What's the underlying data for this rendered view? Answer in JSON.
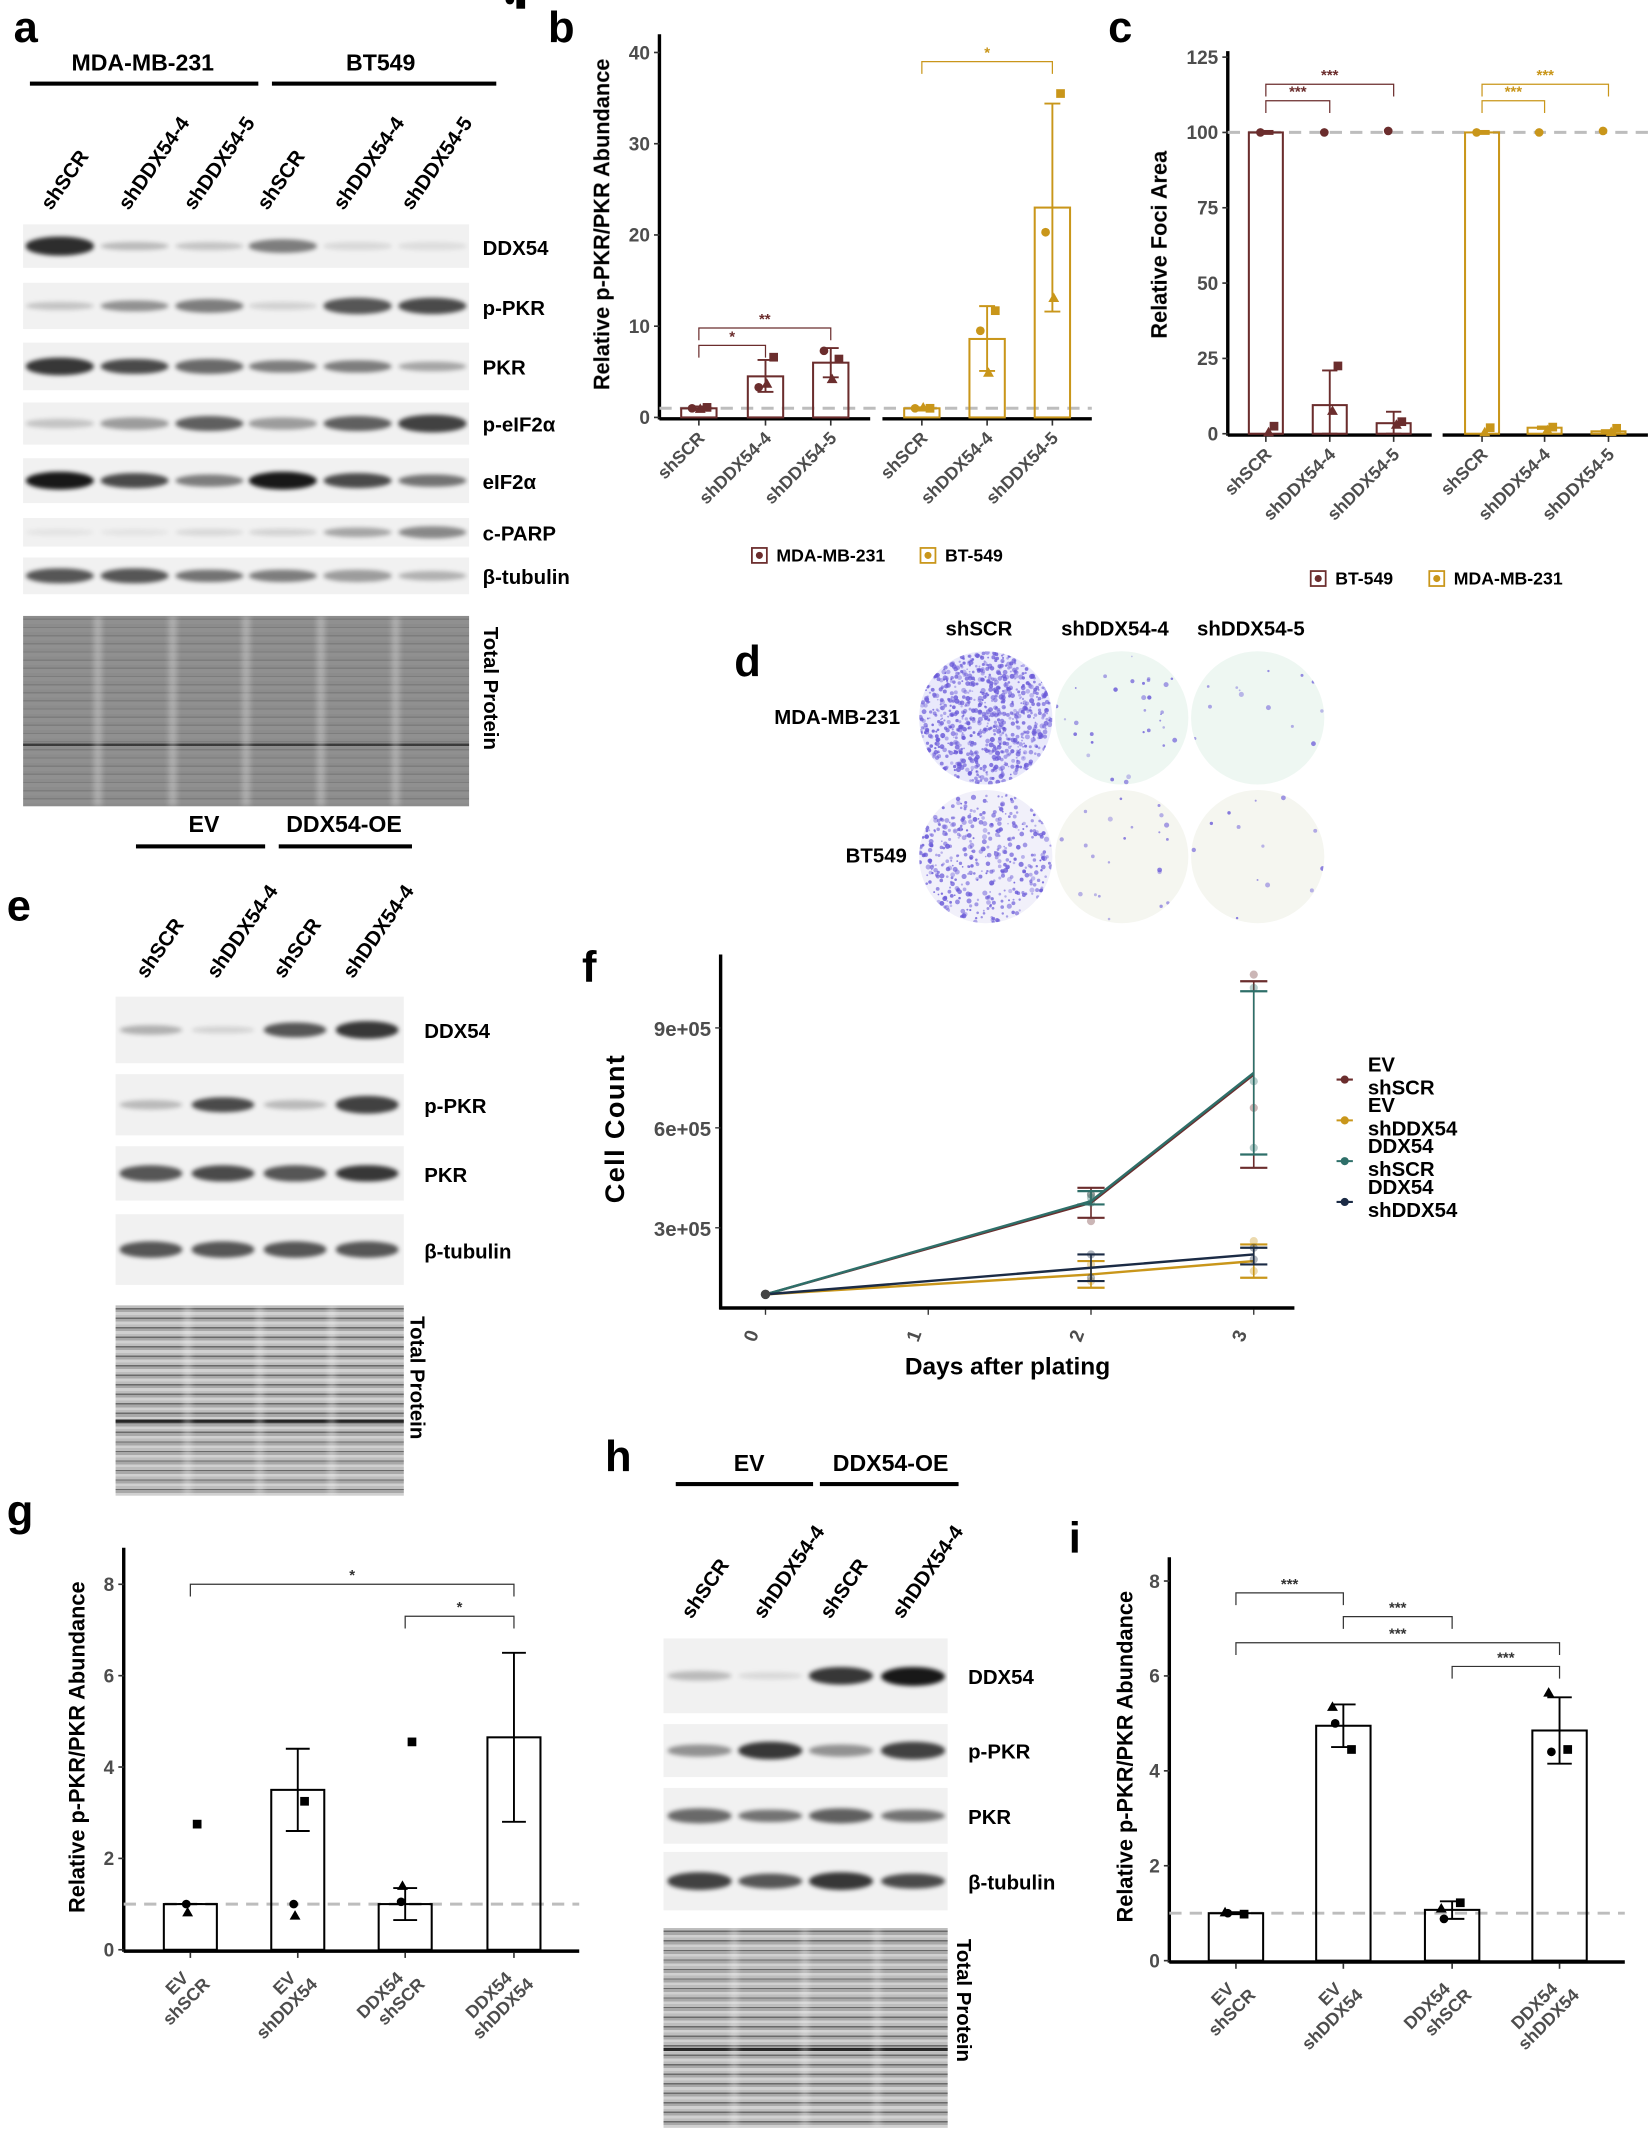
{
  "panel_labels": {
    "a": "a",
    "b": "b",
    "c": "c",
    "d": "d",
    "e": "e",
    "f": "f",
    "g": "g",
    "h": "h",
    "i": "i"
  },
  "blots": {
    "a": {
      "groups": [
        {
          "label": "MDA-MB-231"
        },
        {
          "label": "BT549"
        }
      ],
      "lanes": [
        "shSCR",
        "shDDX54-4",
        "shDDX54-5",
        "shSCR",
        "shDDX54-4",
        "shDDX54-5"
      ],
      "rows": [
        {
          "label": "DDX54",
          "bands": [
            0.9,
            0.2,
            0.15,
            0.5,
            0.05,
            0.03
          ]
        },
        {
          "label": "p-PKR",
          "bands": [
            0.15,
            0.4,
            0.5,
            0.08,
            0.7,
            0.75
          ]
        },
        {
          "label": "PKR",
          "bands": [
            0.85,
            0.75,
            0.6,
            0.5,
            0.5,
            0.3
          ]
        },
        {
          "label": "p-eIF2α",
          "bands": [
            0.15,
            0.35,
            0.65,
            0.35,
            0.65,
            0.8
          ]
        },
        {
          "label": "eIF2α",
          "bands": [
            1.0,
            0.75,
            0.5,
            1.0,
            0.75,
            0.55
          ]
        },
        {
          "label": "c-PARP",
          "bands": [
            0.0,
            0.0,
            0.05,
            0.08,
            0.3,
            0.45
          ]
        },
        {
          "label": "β-tubulin",
          "bands": [
            0.7,
            0.7,
            0.55,
            0.5,
            0.35,
            0.25
          ]
        }
      ],
      "total_protein_label": "Total Protein"
    },
    "e": {
      "groups": [
        {
          "label": "EV"
        },
        {
          "label": "DDX54-OE"
        }
      ],
      "lanes": [
        "shSCR",
        "shDDX54-4",
        "shSCR",
        "shDDX54-4"
      ],
      "rows": [
        {
          "label": "DDX54",
          "bands": [
            0.25,
            0.08,
            0.7,
            0.85
          ]
        },
        {
          "label": "p-PKR",
          "bands": [
            0.2,
            0.75,
            0.2,
            0.8
          ]
        },
        {
          "label": "PKR",
          "bands": [
            0.7,
            0.75,
            0.7,
            0.85
          ]
        },
        {
          "label": "β-tubulin",
          "bands": [
            0.7,
            0.7,
            0.7,
            0.7
          ]
        }
      ],
      "total_protein_label": "Total Protein"
    },
    "h": {
      "groups": [
        {
          "label": "EV"
        },
        {
          "label": "DDX54-OE"
        }
      ],
      "lanes": [
        "shSCR",
        "shDDX54-4",
        "shSCR",
        "shDDX54-4"
      ],
      "rows": [
        {
          "label": "DDX54",
          "bands": [
            0.2,
            0.05,
            0.85,
            1.0
          ]
        },
        {
          "label": "p-PKR",
          "bands": [
            0.4,
            0.85,
            0.4,
            0.8
          ]
        },
        {
          "label": "PKR",
          "bands": [
            0.6,
            0.55,
            0.65,
            0.55
          ]
        },
        {
          "label": "β-tubulin",
          "bands": [
            0.8,
            0.7,
            0.85,
            0.75
          ]
        }
      ],
      "total_protein_label": "Total Protein"
    }
  },
  "colony_assay": {
    "columns": [
      "shSCR",
      "shDDX54-4",
      "shDDX54-5"
    ],
    "rows": [
      {
        "label": "MDA-MB-231",
        "colony_density": [
          0.9,
          0.03,
          0.01
        ]
      },
      {
        "label": "BT549",
        "colony_density": [
          0.45,
          0.02,
          0.01
        ]
      }
    ],
    "stain_color": "#6a5ad8"
  },
  "chart_data": [
    {
      "panel": "b",
      "type": "bar",
      "ylabel": "Relative p-PKR/PKR Abundance",
      "ylim": [
        0,
        42
      ],
      "yticks": [
        0,
        10,
        20,
        30,
        40
      ],
      "categories": [
        "shSCR",
        "shDDX54-4",
        "shDDX54-5"
      ],
      "reference_line": 1,
      "point_shapes": [
        "circle",
        "square",
        "triangle"
      ],
      "legend": "bottom",
      "series": [
        {
          "name": "MDA-MB-231",
          "color": "#6b2d2d",
          "values": [
            1.0,
            4.5,
            6.0
          ],
          "error": [
            [
              0.8,
              1.2
            ],
            [
              2.8,
              6.3
            ],
            [
              4.4,
              7.6
            ]
          ],
          "points": [
            [
              1.0,
              1.1,
              0.95
            ],
            [
              3.3,
              6.6,
              3.7
            ],
            [
              7.3,
              6.4,
              4.2
            ]
          ]
        },
        {
          "name": "BT-549",
          "color": "#c9961a",
          "values": [
            1.0,
            8.6,
            23.0
          ],
          "error": [
            [
              0.9,
              1.1
            ],
            [
              5.1,
              12.2
            ],
            [
              11.6,
              34.4
            ]
          ],
          "points": [
            [
              1.0,
              1.0,
              1.1
            ],
            [
              9.5,
              11.7,
              4.9
            ],
            [
              20.3,
              35.5,
              13.1
            ]
          ]
        }
      ],
      "significance": [
        {
          "series": 0,
          "from": 0,
          "to": 1,
          "label": "*",
          "y": 7.9
        },
        {
          "series": 0,
          "from": 0,
          "to": 2,
          "label": "**",
          "y": 9.8
        },
        {
          "series": 1,
          "from": 0,
          "to": 2,
          "label": "*",
          "y": 39.0
        }
      ]
    },
    {
      "panel": "c",
      "type": "bar",
      "ylabel": "Relative Foci Area",
      "ylim": [
        0,
        127
      ],
      "yticks": [
        0,
        25,
        50,
        75,
        100,
        125
      ],
      "categories": [
        "shSCR",
        "shDDX54-4",
        "shDDX54-5"
      ],
      "reference_line": 100,
      "point_shapes": [
        "circle",
        "square",
        "triangle"
      ],
      "legend": "bottom",
      "series": [
        {
          "name": "BT-549",
          "color": "#6b2d2d",
          "values": [
            100,
            9.5,
            3.5
          ],
          "error": [
            [
              99.5,
              100.5
            ],
            [
              0,
              21
            ],
            [
              0,
              7.3
            ]
          ],
          "points": [
            [
              100,
              2.5,
              0.5
            ],
            [
              100,
              22.5,
              7.6
            ],
            [
              100.5,
              4.0,
              3.0
            ]
          ]
        },
        {
          "name": "MDA-MB-231",
          "color": "#c9961a",
          "values": [
            100,
            2.0,
            0.8
          ],
          "error": [
            [
              99.5,
              100.5
            ],
            [
              1.6,
              2.4
            ],
            [
              0.4,
              1.2
            ]
          ],
          "points": [
            [
              100,
              2.0,
              0.5
            ],
            [
              100,
              2.2,
              1.2
            ],
            [
              100.5,
              1.8,
              0.6
            ]
          ]
        }
      ],
      "significance": [
        {
          "series": 0,
          "from": 0,
          "to": 1,
          "label": "***",
          "y": 110.5
        },
        {
          "series": 0,
          "from": 0,
          "to": 2,
          "label": "***",
          "y": 116
        },
        {
          "series": 1,
          "from": 0,
          "to": 1,
          "label": "***",
          "y": 110.5
        },
        {
          "series": 1,
          "from": 0,
          "to": 2,
          "label": "***",
          "y": 116
        }
      ]
    },
    {
      "panel": "f",
      "type": "line",
      "xlabel": "Days after plating",
      "ylabel": "Cell Count",
      "xticks": [
        0,
        1,
        2,
        3
      ],
      "yticks": [
        300000,
        600000,
        900000
      ],
      "ytick_labels": [
        "3e+05",
        "6e+05",
        "9e+05"
      ],
      "legend": "right",
      "series": [
        {
          "name": [
            "EV",
            "shSCR"
          ],
          "color": "#6b2d2d",
          "x": [
            0,
            2,
            3
          ],
          "values": [
            100000,
            375000,
            760000
          ],
          "error": [
            [
              95000,
              105000
            ],
            [
              330000,
              420000
            ],
            [
              480000,
              1040000
            ]
          ],
          "points": [
            [
              100000,
              320000,
              1060000
            ],
            [
              100000,
              400000,
              660000
            ]
          ]
        },
        {
          "name": [
            "EV",
            "shDDX54"
          ],
          "color": "#c9961a",
          "x": [
            0,
            2,
            3
          ],
          "values": [
            100000,
            160000,
            200000
          ],
          "error": [
            [
              95000,
              105000
            ],
            [
              120000,
              200000
            ],
            [
              150000,
              250000
            ]
          ],
          "points": [
            [
              100000,
              140000,
              260000
            ],
            [
              100000,
              190000,
              170000
            ]
          ]
        },
        {
          "name": [
            "DDX54",
            "shSCR"
          ],
          "color": "#2e6f69",
          "x": [
            0,
            2,
            3
          ],
          "values": [
            100000,
            380000,
            765000
          ],
          "error": [
            [
              95000,
              105000
            ],
            [
              370000,
              410000
            ],
            [
              520000,
              1010000
            ]
          ],
          "points": [
            [
              100000,
              390000,
              1020000
            ],
            [
              100000,
              375000,
              740000
            ],
            [
              100000,
              400000,
              540000
            ]
          ]
        },
        {
          "name": [
            "DDX54",
            "shDDX54"
          ],
          "color": "#1b2b45",
          "x": [
            0,
            2,
            3
          ],
          "values": [
            100000,
            180000,
            220000
          ],
          "error": [
            [
              95000,
              105000
            ],
            [
              140000,
              220000
            ],
            [
              190000,
              240000
            ]
          ],
          "points": [
            [
              100000,
              220000,
              240000
            ],
            [
              100000,
              150000,
              205000
            ]
          ]
        }
      ]
    },
    {
      "panel": "g",
      "type": "bar",
      "ylabel": "Relative p-PKR/PKR Abundance",
      "ylim": [
        0,
        8.8
      ],
      "yticks": [
        0,
        2,
        4,
        6,
        8
      ],
      "categories": [
        [
          "EV",
          "shSCR"
        ],
        [
          "EV",
          "shDDX54"
        ],
        [
          "DDX54",
          "shSCR"
        ],
        [
          "DDX54",
          "shDDX54"
        ]
      ],
      "reference_line": 1,
      "point_shapes": [
        "circle",
        "square",
        "triangle"
      ],
      "series": [
        {
          "color": "#000000",
          "values": [
            1.0,
            3.5,
            1.0,
            4.65
          ],
          "error": [
            [
              1.0,
              1.0
            ],
            [
              2.6,
              4.4
            ],
            [
              0.65,
              1.35
            ],
            [
              2.8,
              6.5
            ]
          ],
          "points": [
            [
              1.0,
              1.0,
              1.05
            ],
            [
              2.75,
              3.25,
              4.55
            ],
            [
              0.82,
              0.75,
              1.4
            ],
            [
              3.9,
              3.3,
              6.75
            ]
          ]
        }
      ],
      "significance": [
        {
          "series": 0,
          "from": 0,
          "to": 3,
          "label": "*",
          "y": 8.0
        },
        {
          "series": 0,
          "from": 2,
          "to": 3,
          "label": "*",
          "y": 7.3
        }
      ]
    },
    {
      "panel": "i",
      "type": "bar",
      "ylabel": "Relative p-PKR/PKR Abundance",
      "ylim": [
        0,
        8.5
      ],
      "yticks": [
        0,
        2,
        4,
        6,
        8
      ],
      "categories": [
        [
          "EV",
          "shSCR"
        ],
        [
          "EV",
          "shDDX54"
        ],
        [
          "DDX54",
          "shSCR"
        ],
        [
          "DDX54",
          "shDDX54"
        ]
      ],
      "reference_line": 1,
      "point_shapes": [
        "circle",
        "square",
        "triangle"
      ],
      "series": [
        {
          "color": "#000000",
          "values": [
            1.0,
            4.95,
            1.07,
            4.85
          ],
          "error": [
            [
              0.98,
              1.02
            ],
            [
              4.5,
              5.4
            ],
            [
              0.88,
              1.25
            ],
            [
              4.15,
              5.55
            ]
          ],
          "points": [
            [
              1.0,
              5.0,
              0.88,
              4.4
            ],
            [
              0.98,
              4.45,
              1.22,
              4.45
            ],
            [
              1.02,
              5.35,
              1.1,
              5.65
            ]
          ]
        }
      ],
      "significance": [
        {
          "series": 0,
          "from": 0,
          "to": 1,
          "label": "***",
          "y": 7.75
        },
        {
          "series": 0,
          "from": 1,
          "to": 2,
          "label": "***",
          "y": 7.25
        },
        {
          "series": 0,
          "from": 0,
          "to": 3,
          "label": "***",
          "y": 6.7
        },
        {
          "series": 0,
          "from": 2,
          "to": 3,
          "label": "***",
          "y": 6.2
        }
      ]
    }
  ]
}
